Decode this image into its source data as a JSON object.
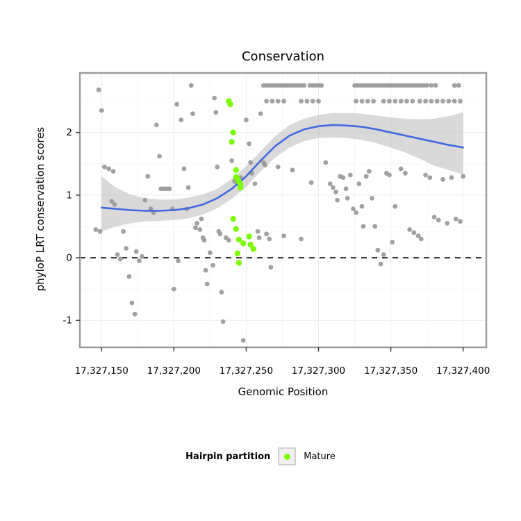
{
  "chart_data": {
    "type": "scatter",
    "title": "Conservation",
    "xlabel": "Genomic Position",
    "ylabel": "phyloP LRT conservation scores",
    "xlim": [
      17327135,
      17327416
    ],
    "ylim": [
      -1.43,
      2.95
    ],
    "x_ticks": [
      {
        "v": 17327150,
        "label": "17,327,150"
      },
      {
        "v": 17327200,
        "label": "17,327,200"
      },
      {
        "v": 17327250,
        "label": "17,327,250"
      },
      {
        "v": 17327300,
        "label": "17,327,300"
      },
      {
        "v": 17327350,
        "label": "17,327,350"
      },
      {
        "v": 17327400,
        "label": "17,327,400"
      }
    ],
    "y_ticks": [
      {
        "v": -1,
        "label": "-1"
      },
      {
        "v": 0,
        "label": "0"
      },
      {
        "v": 1,
        "label": "1"
      },
      {
        "v": 2,
        "label": "2"
      }
    ],
    "x_minor": [
      17327175,
      17327225,
      17327275,
      17327325,
      17327375
    ],
    "y_minor": [
      -0.5,
      0.5,
      1.5,
      2.5
    ],
    "hline": 0,
    "colors": {
      "point": "#999999",
      "mature": "#7CFC00",
      "smooth_line": "#4169E1",
      "ribbon": "#ABABAB",
      "ribbon_opacity": 0.45,
      "panel_border": "#9C9C9C",
      "grid_major": "#ECECEC",
      "grid_minor": "#F6F6F6",
      "hline": "#000000"
    },
    "series": [
      {
        "name": "background",
        "color": "#999999",
        "points": [
          [
            17327148,
            2.68
          ],
          [
            17327150,
            2.35
          ],
          [
            17327152,
            1.45
          ],
          [
            17327155,
            1.42
          ],
          [
            17327158,
            1.38
          ],
          [
            17327146,
            0.45
          ],
          [
            17327149,
            0.42
          ],
          [
            17327157,
            0.9
          ],
          [
            17327159,
            0.85
          ],
          [
            17327161,
            0.05
          ],
          [
            17327163,
            -0.02
          ],
          [
            17327165,
            0.42
          ],
          [
            17327167,
            0.15
          ],
          [
            17327169,
            -0.3
          ],
          [
            17327171,
            -0.72
          ],
          [
            17327173,
            -0.9
          ],
          [
            17327174,
            0.1
          ],
          [
            17327176,
            -0.05
          ],
          [
            17327178,
            0.02
          ],
          [
            17327180,
            0.92
          ],
          [
            17327182,
            1.3
          ],
          [
            17327184,
            0.78
          ],
          [
            17327186,
            0.72
          ],
          [
            17327188,
            2.12
          ],
          [
            17327190,
            1.62
          ],
          [
            17327191,
            1.1
          ],
          [
            17327193,
            1.1
          ],
          [
            17327195,
            1.1
          ],
          [
            17327197,
            1.1
          ],
          [
            17327199,
            0.78
          ],
          [
            17327200,
            -0.5
          ],
          [
            17327203,
            -0.05
          ],
          [
            17327202,
            2.45
          ],
          [
            17327205,
            2.2
          ],
          [
            17327207,
            1.42
          ],
          [
            17327209,
            0.78
          ],
          [
            17327210,
            1.12
          ],
          [
            17327212,
            2.75
          ],
          [
            17327213,
            2.3
          ],
          [
            17327215,
            0.48
          ],
          [
            17327216,
            0.55
          ],
          [
            17327218,
            0.45
          ],
          [
            17327219,
            0.62
          ],
          [
            17327220,
            0.32
          ],
          [
            17327221,
            0.28
          ],
          [
            17327222,
            -0.2
          ],
          [
            17327223,
            -0.42
          ],
          [
            17327225,
            0.08
          ],
          [
            17327227,
            -0.12
          ],
          [
            17327228,
            2.55
          ],
          [
            17327229,
            2.32
          ],
          [
            17327230,
            1.45
          ],
          [
            17327231,
            0.42
          ],
          [
            17327232,
            0.38
          ],
          [
            17327233,
            -0.55
          ],
          [
            17327234,
            -1.02
          ],
          [
            17327236,
            0.32
          ],
          [
            17327238,
            0.28
          ],
          [
            17327240,
            1.55
          ],
          [
            17327242,
            1.22
          ],
          [
            17327244,
            1.18
          ],
          [
            17327246,
            1.28
          ],
          [
            17327248,
            -1.32
          ],
          [
            17327250,
            2.2
          ],
          [
            17327252,
            1.82
          ],
          [
            17327253,
            1.52
          ],
          [
            17327254,
            1.35
          ],
          [
            17327256,
            1.18
          ],
          [
            17327258,
            0.42
          ],
          [
            17327259,
            0.32
          ],
          [
            17327260,
            2.3
          ],
          [
            17327262,
            1.52
          ],
          [
            17327263,
            1.48
          ],
          [
            17327264,
            0.38
          ],
          [
            17327266,
            0.3
          ],
          [
            17327267,
            -0.15
          ],
          [
            17327272,
            1.45
          ],
          [
            17327276,
            0.35
          ],
          [
            17327282,
            1.4
          ],
          [
            17327288,
            0.3
          ],
          [
            17327295,
            1.2
          ],
          [
            17327262,
            2.75
          ],
          [
            17327264,
            2.75
          ],
          [
            17327266,
            2.75
          ],
          [
            17327268,
            2.75
          ],
          [
            17327270,
            2.75
          ],
          [
            17327272,
            2.75
          ],
          [
            17327274,
            2.75
          ],
          [
            17327276,
            2.75
          ],
          [
            17327278,
            2.75
          ],
          [
            17327280,
            2.75
          ],
          [
            17327282,
            2.75
          ],
          [
            17327284,
            2.75
          ],
          [
            17327286,
            2.75
          ],
          [
            17327288,
            2.75
          ],
          [
            17327290,
            2.75
          ],
          [
            17327294,
            2.75
          ],
          [
            17327296,
            2.75
          ],
          [
            17327298,
            2.75
          ],
          [
            17327300,
            2.75
          ],
          [
            17327302,
            2.75
          ],
          [
            17327264,
            2.5
          ],
          [
            17327268,
            2.5
          ],
          [
            17327272,
            2.5
          ],
          [
            17327276,
            2.5
          ],
          [
            17327288,
            2.5
          ],
          [
            17327292,
            2.5
          ],
          [
            17327296,
            2.5
          ],
          [
            17327300,
            2.5
          ],
          [
            17327325,
            2.75
          ],
          [
            17327327,
            2.75
          ],
          [
            17327329,
            2.75
          ],
          [
            17327331,
            2.75
          ],
          [
            17327333,
            2.75
          ],
          [
            17327335,
            2.75
          ],
          [
            17327337,
            2.75
          ],
          [
            17327339,
            2.75
          ],
          [
            17327341,
            2.75
          ],
          [
            17327343,
            2.75
          ],
          [
            17327345,
            2.75
          ],
          [
            17327347,
            2.75
          ],
          [
            17327349,
            2.75
          ],
          [
            17327351,
            2.75
          ],
          [
            17327353,
            2.75
          ],
          [
            17327355,
            2.75
          ],
          [
            17327357,
            2.75
          ],
          [
            17327359,
            2.75
          ],
          [
            17327361,
            2.75
          ],
          [
            17327363,
            2.75
          ],
          [
            17327365,
            2.75
          ],
          [
            17327367,
            2.75
          ],
          [
            17327369,
            2.75
          ],
          [
            17327371,
            2.75
          ],
          [
            17327373,
            2.75
          ],
          [
            17327375,
            2.75
          ],
          [
            17327378,
            2.75
          ],
          [
            17327381,
            2.75
          ],
          [
            17327394,
            2.75
          ],
          [
            17327397,
            2.75
          ],
          [
            17327326,
            2.5
          ],
          [
            17327330,
            2.5
          ],
          [
            17327334,
            2.5
          ],
          [
            17327338,
            2.5
          ],
          [
            17327345,
            2.5
          ],
          [
            17327349,
            2.5
          ],
          [
            17327353,
            2.5
          ],
          [
            17327357,
            2.5
          ],
          [
            17327361,
            2.5
          ],
          [
            17327365,
            2.5
          ],
          [
            17327370,
            2.5
          ],
          [
            17327374,
            2.5
          ],
          [
            17327378,
            2.5
          ],
          [
            17327382,
            2.5
          ],
          [
            17327386,
            2.5
          ],
          [
            17327390,
            2.5
          ],
          [
            17327394,
            2.5
          ],
          [
            17327398,
            2.5
          ],
          [
            17327305,
            1.52
          ],
          [
            17327308,
            1.18
          ],
          [
            17327310,
            1.12
          ],
          [
            17327312,
            1.05
          ],
          [
            17327313,
            0.92
          ],
          [
            17327315,
            1.3
          ],
          [
            17327317,
            1.28
          ],
          [
            17327319,
            1.1
          ],
          [
            17327320,
            0.95
          ],
          [
            17327322,
            1.32
          ],
          [
            17327324,
            0.78
          ],
          [
            17327326,
            0.72
          ],
          [
            17327328,
            1.18
          ],
          [
            17327330,
            0.82
          ],
          [
            17327331,
            0.5
          ],
          [
            17327333,
            1.3
          ],
          [
            17327335,
            1.38
          ],
          [
            17327337,
            0.95
          ],
          [
            17327339,
            0.5
          ],
          [
            17327341,
            0.12
          ],
          [
            17327343,
            -0.1
          ],
          [
            17327345,
            0.05
          ],
          [
            17327347,
            1.35
          ],
          [
            17327349,
            1.32
          ],
          [
            17327351,
            0.25
          ],
          [
            17327353,
            0.82
          ],
          [
            17327357,
            1.42
          ],
          [
            17327360,
            1.35
          ],
          [
            17327363,
            0.45
          ],
          [
            17327366,
            0.4
          ],
          [
            17327369,
            0.35
          ],
          [
            17327371,
            0.3
          ],
          [
            17327374,
            1.32
          ],
          [
            17327377,
            1.28
          ],
          [
            17327380,
            0.65
          ],
          [
            17327383,
            0.6
          ],
          [
            17327386,
            1.25
          ],
          [
            17327389,
            0.55
          ],
          [
            17327392,
            1.28
          ],
          [
            17327395,
            0.62
          ],
          [
            17327398,
            0.58
          ],
          [
            17327400,
            1.3
          ]
        ]
      },
      {
        "name": "Mature",
        "color": "#7CFC00",
        "points": [
          [
            17327238,
            2.5
          ],
          [
            17327239,
            2.45
          ],
          [
            17327240,
            1.85
          ],
          [
            17327241,
            2.0
          ],
          [
            17327241,
            0.62
          ],
          [
            17327243,
            1.4
          ],
          [
            17327243,
            1.29
          ],
          [
            17327243,
            0.46
          ],
          [
            17327244,
            1.26
          ],
          [
            17327244,
            0.07
          ],
          [
            17327245,
            1.21
          ],
          [
            17327245,
            0.29
          ],
          [
            17327245,
            -0.08
          ],
          [
            17327246,
            1.17
          ],
          [
            17327246,
            1.12
          ],
          [
            17327248,
            0.23
          ],
          [
            17327252,
            0.34
          ],
          [
            17327253,
            0.21
          ],
          [
            17327255,
            0.14
          ]
        ]
      }
    ],
    "smooth": {
      "color": "#4169E1",
      "x": [
        17327150,
        17327160,
        17327170,
        17327180,
        17327190,
        17327200,
        17327210,
        17327220,
        17327230,
        17327240,
        17327250,
        17327260,
        17327270,
        17327280,
        17327290,
        17327300,
        17327310,
        17327320,
        17327330,
        17327340,
        17327350,
        17327360,
        17327370,
        17327380,
        17327390,
        17327400
      ],
      "y": [
        0.8,
        0.78,
        0.76,
        0.75,
        0.75,
        0.76,
        0.79,
        0.85,
        0.95,
        1.1,
        1.3,
        1.55,
        1.78,
        1.95,
        2.05,
        2.1,
        2.12,
        2.11,
        2.09,
        2.05,
        2.0,
        1.95,
        1.9,
        1.85,
        1.8,
        1.76
      ],
      "lower": [
        0.42,
        0.5,
        0.55,
        0.58,
        0.59,
        0.6,
        0.63,
        0.69,
        0.79,
        0.94,
        1.13,
        1.38,
        1.6,
        1.76,
        1.86,
        1.91,
        1.92,
        1.91,
        1.88,
        1.83,
        1.76,
        1.68,
        1.58,
        1.47,
        1.4,
        1.33
      ],
      "upper": [
        1.3,
        1.12,
        1.01,
        0.95,
        0.93,
        0.93,
        0.96,
        1.01,
        1.1,
        1.26,
        1.46,
        1.7,
        1.94,
        2.12,
        2.22,
        2.28,
        2.31,
        2.31,
        2.3,
        2.27,
        2.24,
        2.22,
        2.21,
        2.22,
        2.26,
        2.32
      ]
    },
    "legend": {
      "title": "Hairpin partition",
      "items": [
        {
          "label": "Mature",
          "color": "#7CFC00"
        }
      ]
    }
  }
}
